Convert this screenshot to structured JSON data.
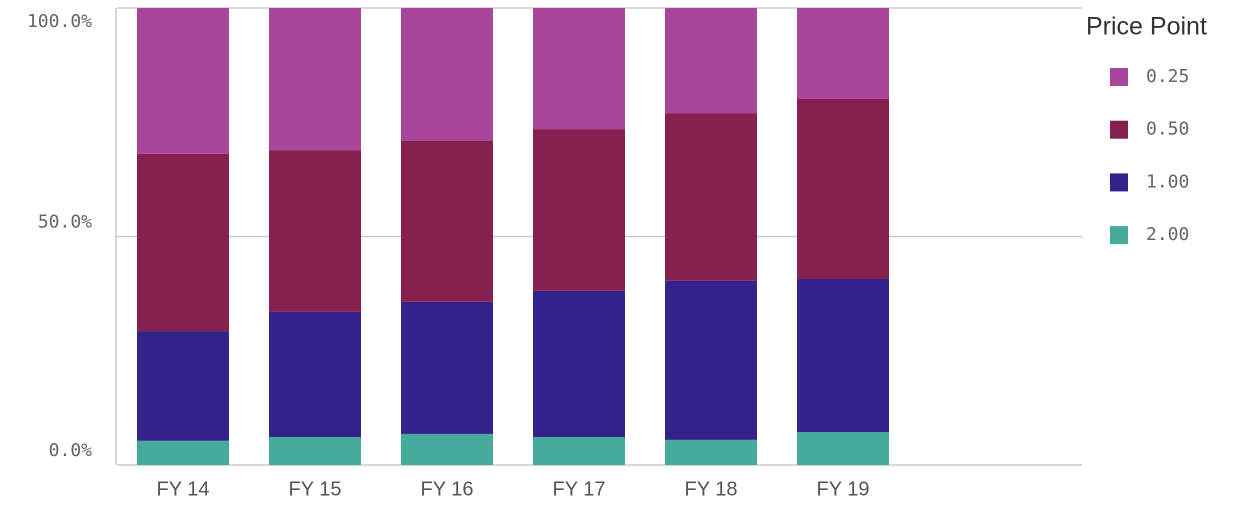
{
  "chart_data": {
    "type": "stacked_bar",
    "legend_title": "Price Point",
    "categories": [
      "FY 14",
      "FY 15",
      "FY 16",
      "FY 17",
      "FY 18",
      "FY 19"
    ],
    "series": [
      {
        "name": "0.25",
        "color": "#a8469c",
        "values": [
          31.9,
          31.1,
          29.1,
          26.5,
          23.0,
          19.9
        ]
      },
      {
        "name": "0.50",
        "color": "#86214f",
        "values": [
          38.8,
          35.4,
          35.2,
          35.4,
          36.7,
          39.4
        ]
      },
      {
        "name": "1.00",
        "color": "#33228a",
        "values": [
          24.0,
          27.4,
          28.9,
          32.0,
          34.8,
          33.5
        ]
      },
      {
        "name": "2.00",
        "color": "#45ab9a",
        "values": [
          5.3,
          6.1,
          6.8,
          6.1,
          5.5,
          7.2
        ]
      }
    ],
    "ylim": [
      0,
      100
    ],
    "yticks": [
      {
        "value": 0,
        "label": "0.0%"
      },
      {
        "value": 50,
        "label": "50.0%"
      },
      {
        "value": 100,
        "label": "100.0%"
      }
    ],
    "grid": true,
    "legend": "right"
  }
}
